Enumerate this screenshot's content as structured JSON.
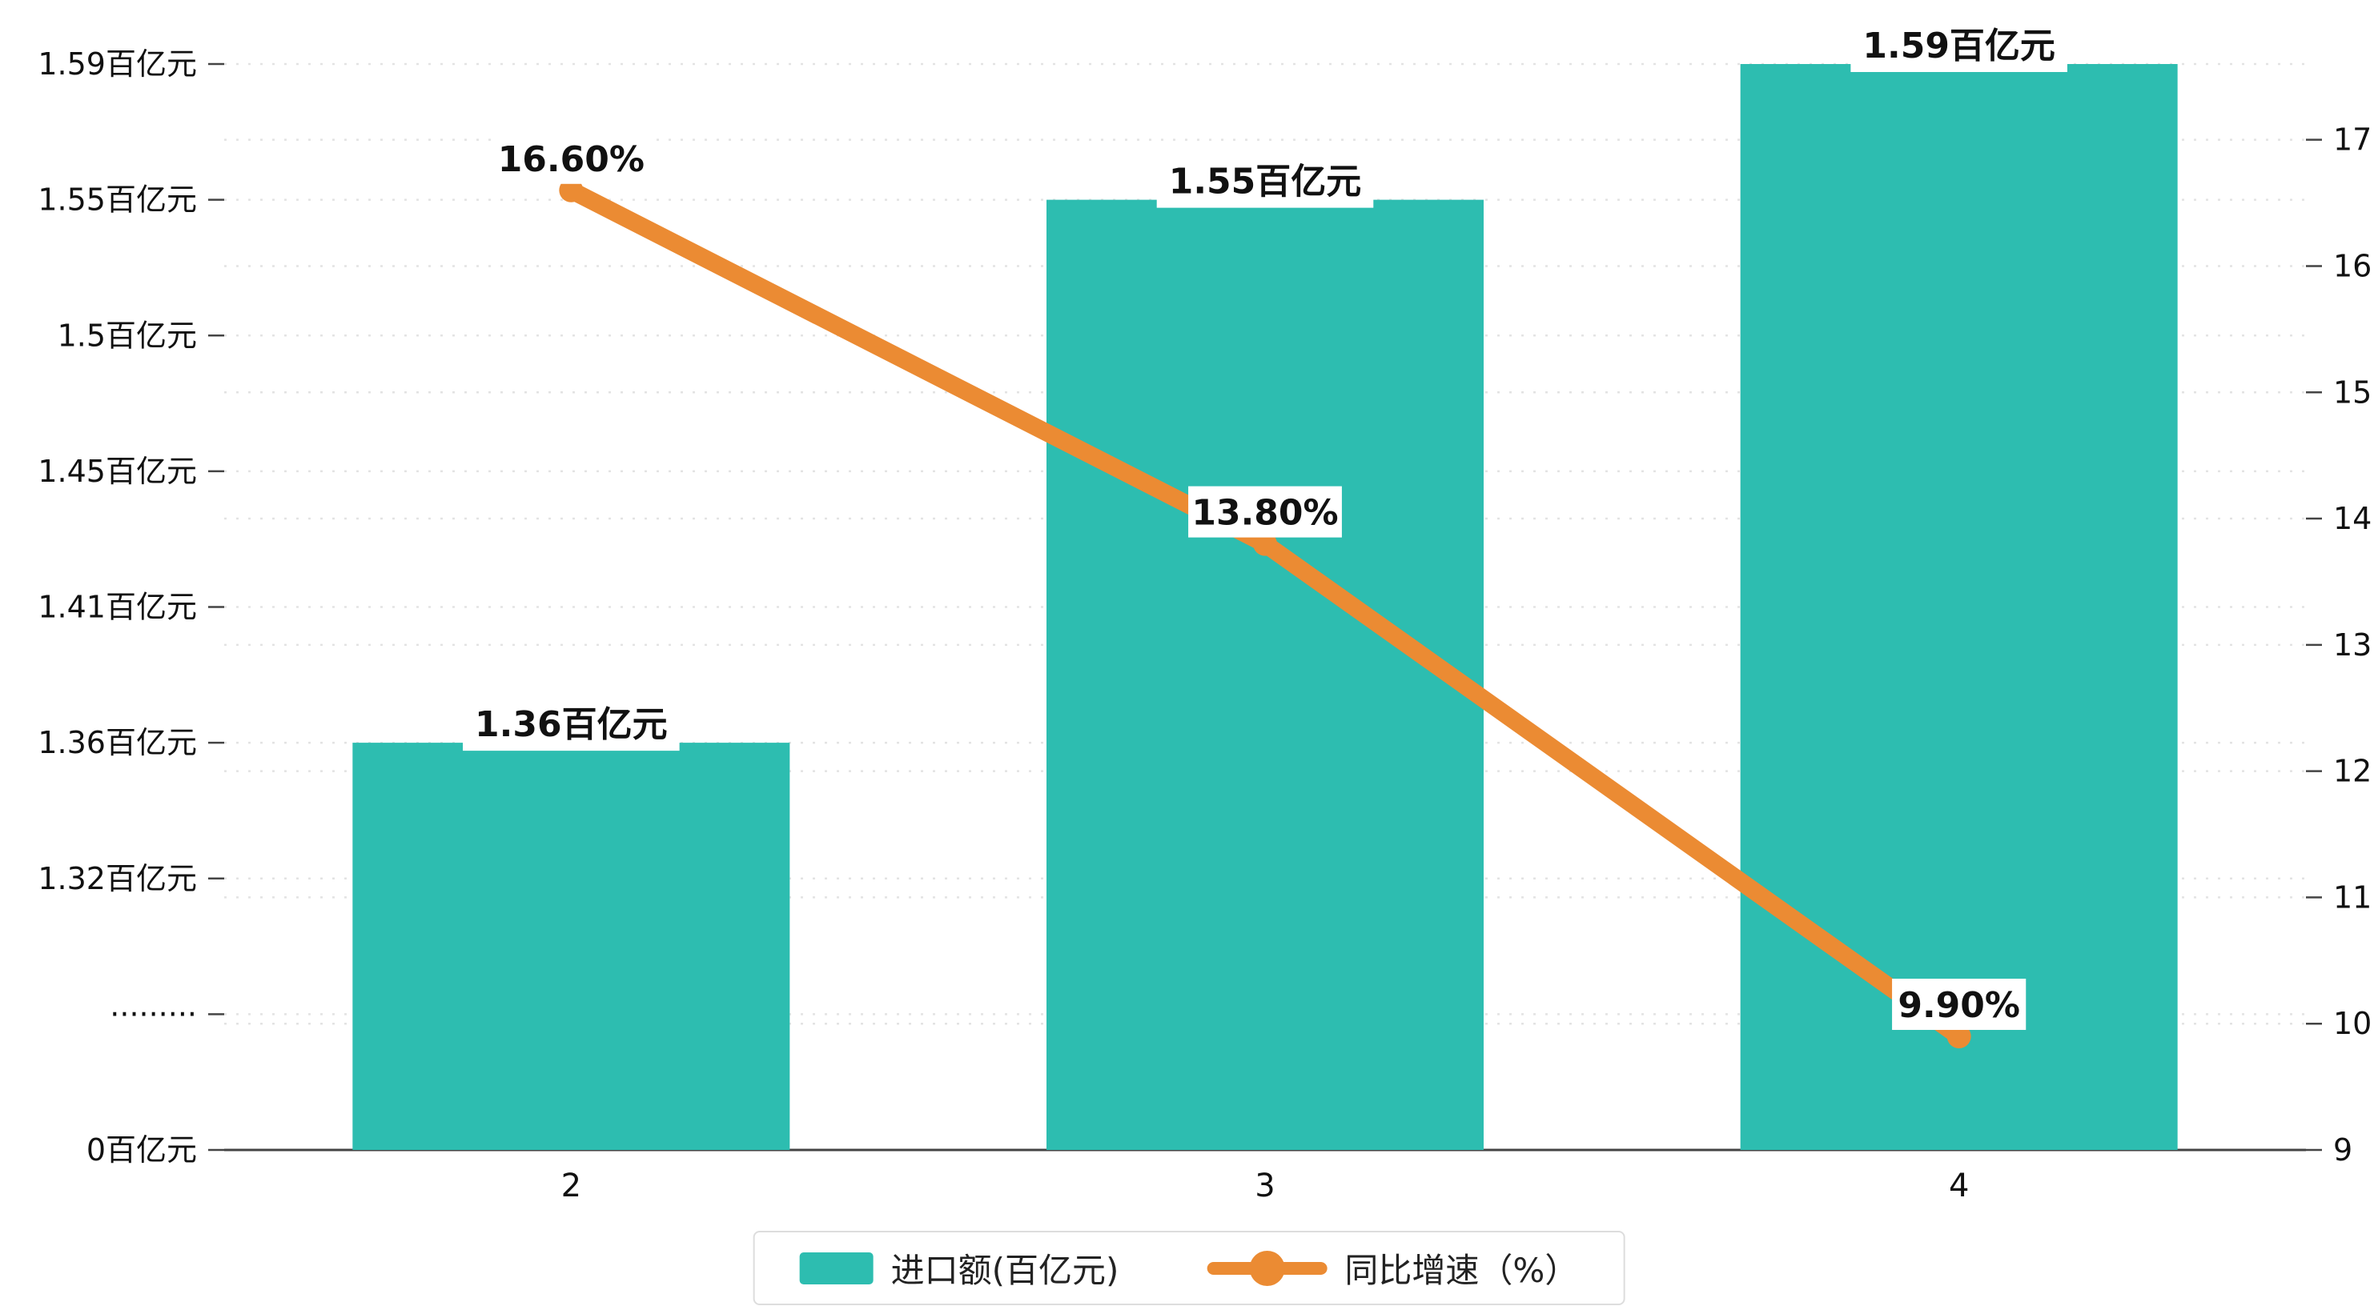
{
  "colors": {
    "bar": "#2dbdb0",
    "line": "#eb8b33",
    "grid": "#e3e3e3",
    "axis": "#444444",
    "text": "#111111",
    "label_bg": "#ffffff"
  },
  "chart_data": {
    "type": "bar",
    "title": "",
    "categories": [
      "2",
      "3",
      "4"
    ],
    "series": [
      {
        "name": "进口额(百亿元)",
        "type": "bar",
        "axis": "left",
        "unit": "百亿元",
        "values": [
          1.36,
          1.55,
          1.59
        ],
        "data_labels": [
          "1.36百亿元",
          "1.55百亿元",
          "1.59百亿元"
        ],
        "color": "#2dbdb0"
      },
      {
        "name": "同比增速（%）",
        "type": "line",
        "axis": "right",
        "unit": "%",
        "values": [
          16.6,
          13.8,
          9.9
        ],
        "data_labels": [
          "16.60%",
          "13.80%",
          "9.90%"
        ],
        "color": "#eb8b33"
      }
    ],
    "left_axis": {
      "broken_axis": true,
      "ticks": [
        {
          "label": "1.59百亿元",
          "value": 1.59
        },
        {
          "label": "1.55百亿元",
          "value": 1.55
        },
        {
          "label": "1.5百亿元",
          "value": 1.5
        },
        {
          "label": "1.45百亿元",
          "value": 1.45
        },
        {
          "label": "1.41百亿元",
          "value": 1.41
        },
        {
          "label": "1.36百亿元",
          "value": 1.36
        },
        {
          "label": "1.32百亿元",
          "value": 1.32
        },
        {
          "label": "·········",
          "value": null
        },
        {
          "label": "0百亿元",
          "value": 0
        }
      ]
    },
    "right_axis": {
      "min": 9,
      "max": 17.6,
      "ticks": [
        17,
        16,
        15,
        14,
        13,
        12,
        11,
        10,
        9
      ]
    },
    "grid": true,
    "legend_position": "bottom"
  }
}
